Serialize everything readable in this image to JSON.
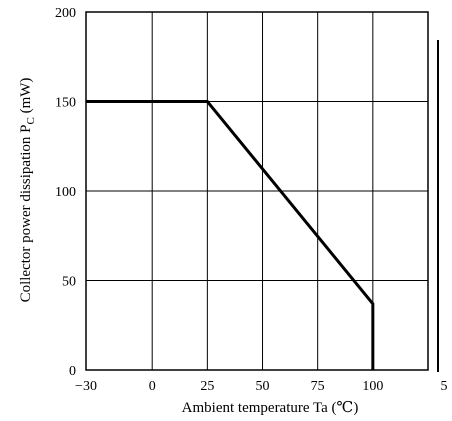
{
  "chart_data": {
    "type": "line",
    "title": "",
    "xlabel": "Ambient temperature Ta (℃)",
    "ylabel_main": "Collector power dissipation P",
    "ylabel_sub": "C",
    "ylabel_unit": " (mW)",
    "xlim": [
      -30,
      125
    ],
    "ylim": [
      0,
      200
    ],
    "x_ticks": [
      -30,
      0,
      25,
      50,
      75,
      100
    ],
    "x_tick_labels": [
      "−30",
      "0",
      "25",
      "50",
      "75",
      "100"
    ],
    "x_tick_extra_label": "5",
    "y_ticks": [
      0,
      50,
      100,
      150,
      200
    ],
    "y_tick_labels": [
      "0",
      "50",
      "100",
      "150",
      "200"
    ],
    "grid": true,
    "series": [
      {
        "x": [
          -30,
          25,
          100,
          100
        ],
        "y": [
          150,
          150,
          37,
          0
        ]
      }
    ]
  },
  "colors": {
    "line": "#000000",
    "grid": "#000000",
    "background": "#ffffff"
  }
}
